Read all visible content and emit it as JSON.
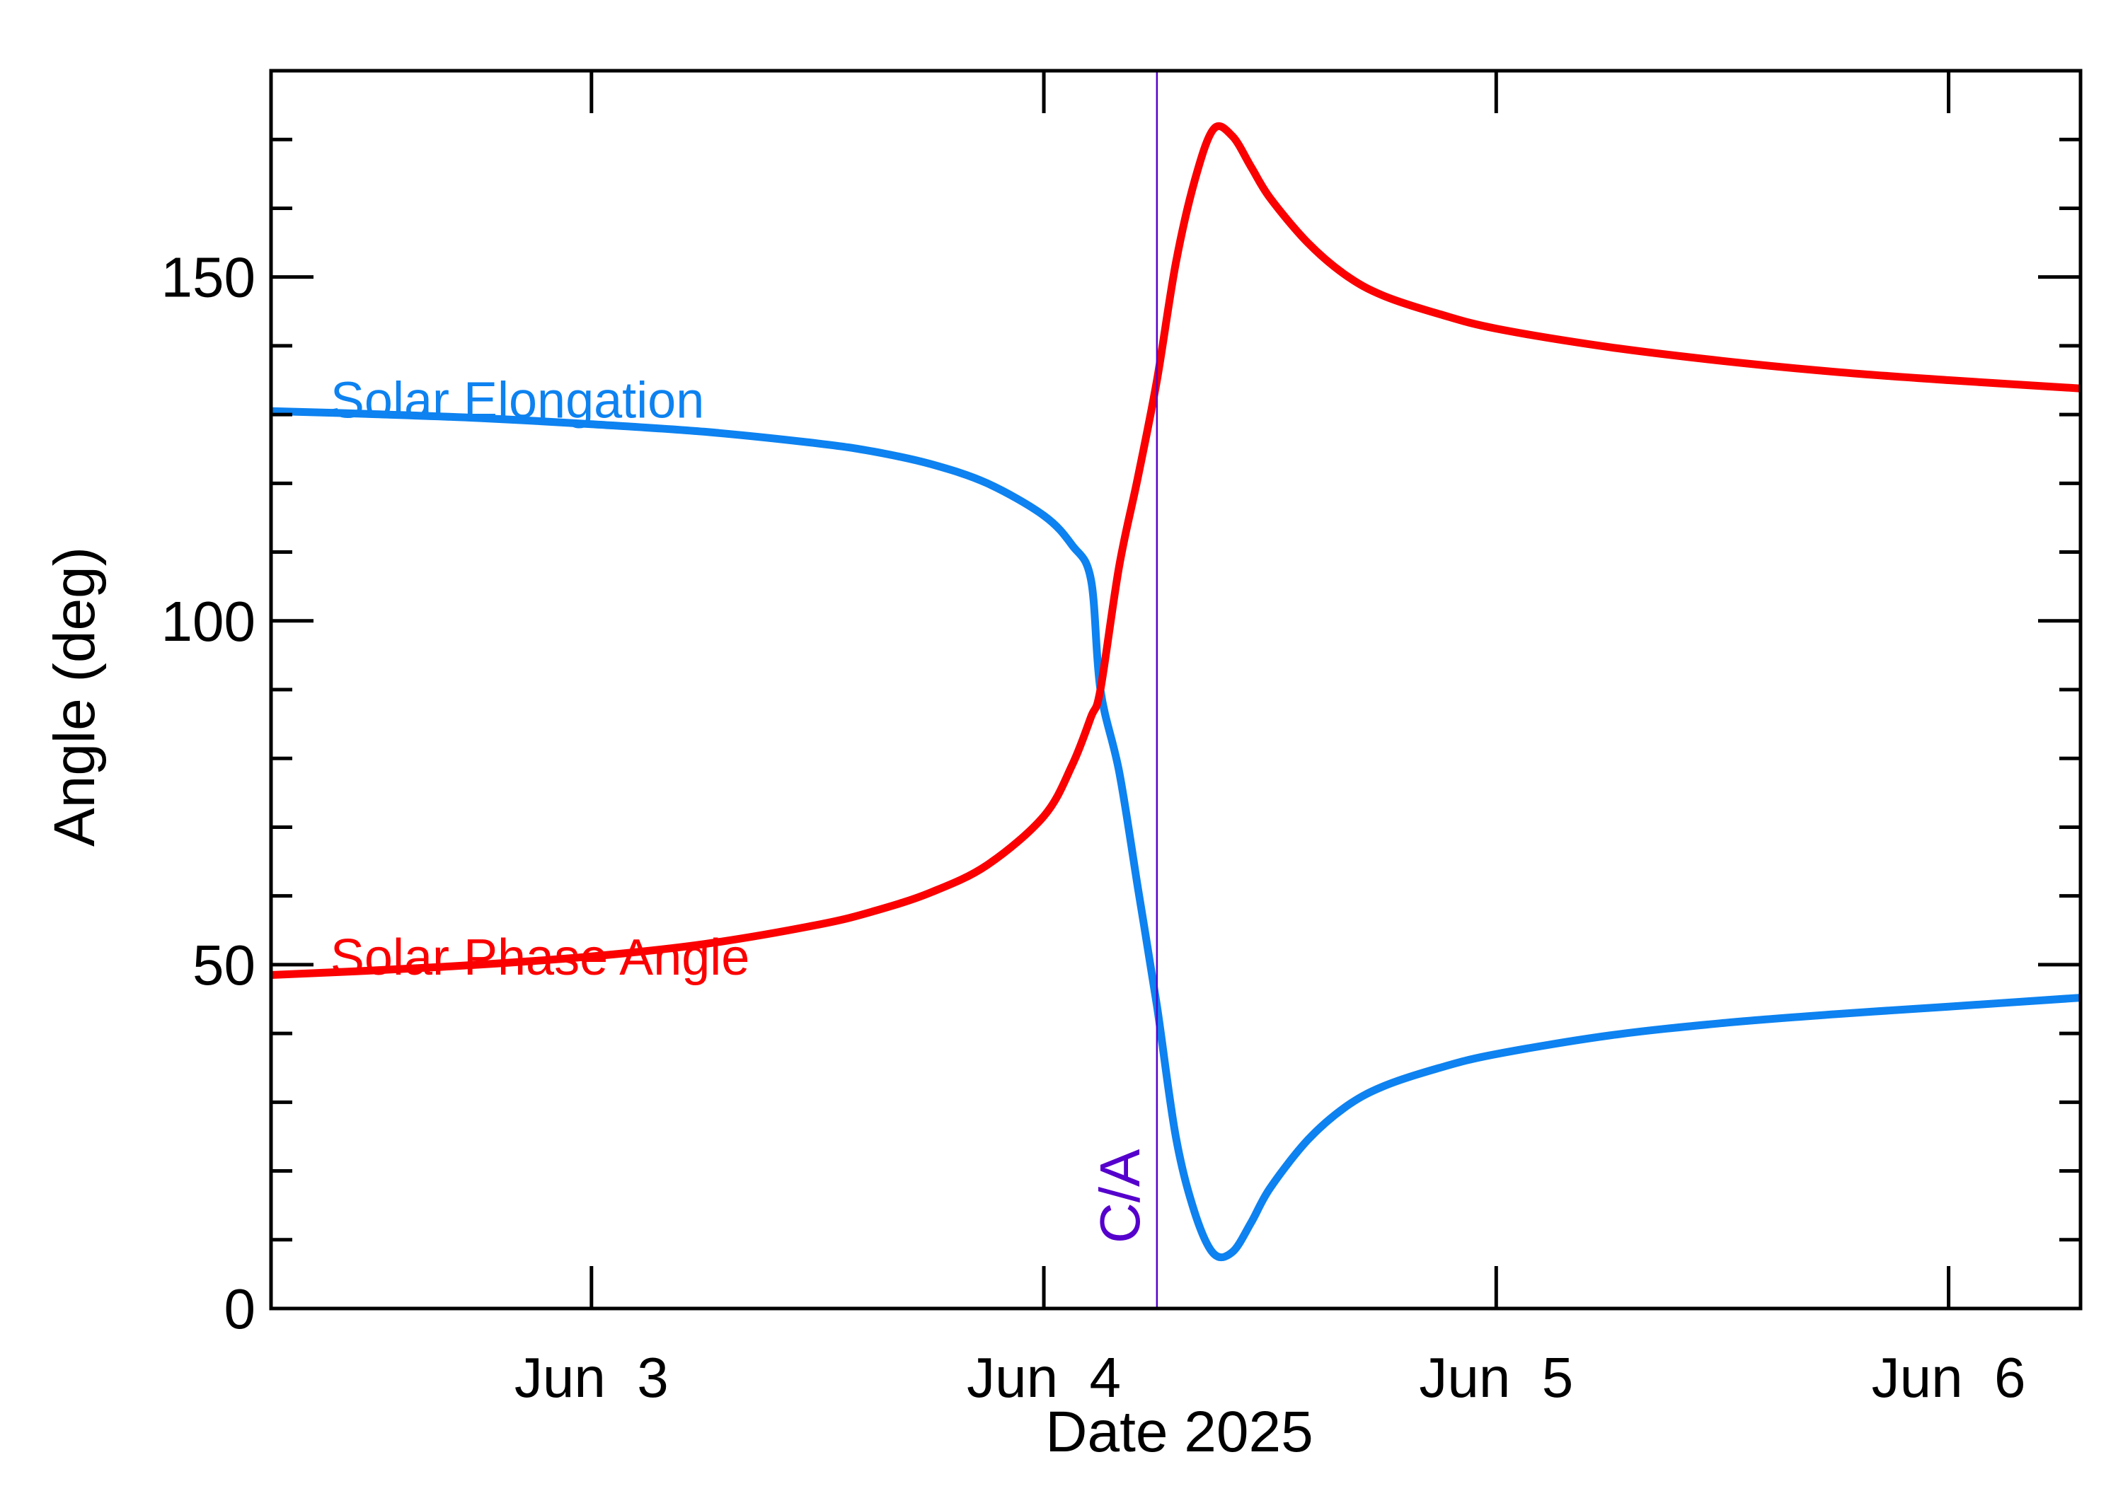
{
  "chart_data": {
    "type": "line",
    "title": "",
    "xlabel": "Date 2025",
    "ylabel": "Angle (deg)",
    "x_unit": "date",
    "xlim": [
      "2025-06-02 07:00",
      "2025-06-06 07:00"
    ],
    "ylim": [
      0,
      180
    ],
    "x_ticks": [
      {
        "value": "2025-06-03 00:00",
        "label": "Jun  3"
      },
      {
        "value": "2025-06-04 00:00",
        "label": "Jun  4"
      },
      {
        "value": "2025-06-05 00:00",
        "label": "Jun  5"
      },
      {
        "value": "2025-06-06 00:00",
        "label": "Jun  6"
      }
    ],
    "x_minor_per_major": 0,
    "y_ticks": [
      {
        "value": 0,
        "label": "0"
      },
      {
        "value": 50,
        "label": "50"
      },
      {
        "value": 100,
        "label": "100"
      },
      {
        "value": 150,
        "label": "150"
      }
    ],
    "y_minor_step": 10,
    "grid": false,
    "legend": "none",
    "closest_approach": {
      "x": "2025-06-04 06:00",
      "label": "C/A",
      "color": "#5500cc"
    },
    "series": [
      {
        "name": "Solar Elongation",
        "color": "#0d82f0",
        "label_at": "2025-06-02 10:00",
        "label_y": 132,
        "points": [
          [
            "2025-06-02 07:00",
            130.5
          ],
          [
            "2025-06-02 12:00",
            130.1
          ],
          [
            "2025-06-02 18:00",
            129.5
          ],
          [
            "2025-06-03 00:00",
            128.6
          ],
          [
            "2025-06-03 06:00",
            127.5
          ],
          [
            "2025-06-03 12:00",
            125.8
          ],
          [
            "2025-06-03 15:00",
            124.6
          ],
          [
            "2025-06-03 18:00",
            122.8
          ],
          [
            "2025-06-03 21:00",
            120.0
          ],
          [
            "2025-06-04 00:00",
            115.3
          ],
          [
            "2025-06-04 01:30",
            111.0
          ],
          [
            "2025-06-04 02:30",
            106.0
          ],
          [
            "2025-06-04 03:00",
            90.0
          ],
          [
            "2025-06-04 04:00",
            78.0
          ],
          [
            "2025-06-04 05:00",
            61.0
          ],
          [
            "2025-06-04 06:00",
            44.0
          ],
          [
            "2025-06-04 07:00",
            25.0
          ],
          [
            "2025-06-04 08:00",
            14.0
          ],
          [
            "2025-06-04 09:00",
            8.0
          ],
          [
            "2025-06-04 10:00",
            8.2
          ],
          [
            "2025-06-04 11:00",
            12.5
          ],
          [
            "2025-06-04 12:00",
            17.5
          ],
          [
            "2025-06-04 14:00",
            24.5
          ],
          [
            "2025-06-04 16:00",
            29.3
          ],
          [
            "2025-06-04 18:00",
            32.3
          ],
          [
            "2025-06-04 21:00",
            35.0
          ],
          [
            "2025-06-05 00:00",
            37.0
          ],
          [
            "2025-06-05 06:00",
            39.7
          ],
          [
            "2025-06-05 12:00",
            41.5
          ],
          [
            "2025-06-05 18:00",
            42.8
          ],
          [
            "2025-06-06 00:00",
            43.9
          ],
          [
            "2025-06-06 07:00",
            45.2
          ]
        ]
      },
      {
        "name": "Solar Phase Angle",
        "color": "#fa0000",
        "label_at": "2025-06-02 10:00",
        "label_y": 51,
        "points": [
          [
            "2025-06-02 07:00",
            48.5
          ],
          [
            "2025-06-02 12:00",
            49.1
          ],
          [
            "2025-06-02 18:00",
            50.0
          ],
          [
            "2025-06-03 00:00",
            51.2
          ],
          [
            "2025-06-03 06:00",
            53.0
          ],
          [
            "2025-06-03 12:00",
            55.8
          ],
          [
            "2025-06-03 15:00",
            57.8
          ],
          [
            "2025-06-03 18:00",
            60.5
          ],
          [
            "2025-06-03 21:00",
            64.5
          ],
          [
            "2025-06-04 00:00",
            71.6
          ],
          [
            "2025-06-04 01:30",
            79.0
          ],
          [
            "2025-06-04 02:30",
            86.0
          ],
          [
            "2025-06-04 03:00",
            90.0
          ],
          [
            "2025-06-04 04:00",
            108.0
          ],
          [
            "2025-06-04 05:00",
            121.0
          ],
          [
            "2025-06-04 06:00",
            135.0
          ],
          [
            "2025-06-04 07:00",
            152.0
          ],
          [
            "2025-06-04 08:00",
            164.0
          ],
          [
            "2025-06-04 09:00",
            171.5
          ],
          [
            "2025-06-04 10:00",
            170.5
          ],
          [
            "2025-06-04 11:00",
            166.0
          ],
          [
            "2025-06-04 12:00",
            161.5
          ],
          [
            "2025-06-04 14:00",
            155.0
          ],
          [
            "2025-06-04 16:00",
            150.3
          ],
          [
            "2025-06-04 18:00",
            147.3
          ],
          [
            "2025-06-04 21:00",
            144.6
          ],
          [
            "2025-06-05 00:00",
            142.5
          ],
          [
            "2025-06-05 06:00",
            139.8
          ],
          [
            "2025-06-05 12:00",
            137.8
          ],
          [
            "2025-06-05 18:00",
            136.2
          ],
          [
            "2025-06-06 00:00",
            135.0
          ],
          [
            "2025-06-06 07:00",
            133.8
          ]
        ]
      }
    ]
  }
}
